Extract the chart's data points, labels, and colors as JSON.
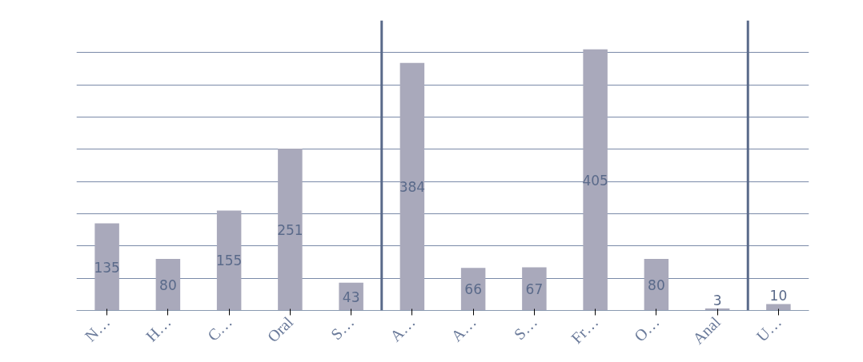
{
  "chart_data": {
    "type": "bar",
    "categories": [
      "N…",
      "H…",
      "C…",
      "Oral",
      "S…",
      "A…",
      "A…",
      "S…",
      "Fr…",
      "O…",
      "Anal",
      "U…"
    ],
    "values": [
      135,
      80,
      155,
      251,
      43,
      384,
      66,
      67,
      405,
      80,
      3,
      10
    ],
    "color": "#a9a9bb",
    "data_labels": true,
    "ylim": [
      0,
      450
    ],
    "yticks": [
      {
        "value": 0,
        "label": null
      },
      {
        "value": 50,
        "label": null
      },
      {
        "value": 100,
        "label": null
      },
      {
        "value": 150,
        "label": null
      },
      {
        "value": 200,
        "label": null
      },
      {
        "value": 250,
        "label": null
      },
      {
        "value": 300,
        "label": null
      },
      {
        "value": 350,
        "label": null
      },
      {
        "value": 400,
        "label": null
      }
    ],
    "tick_labels": "x",
    "grid": "y"
  }
}
